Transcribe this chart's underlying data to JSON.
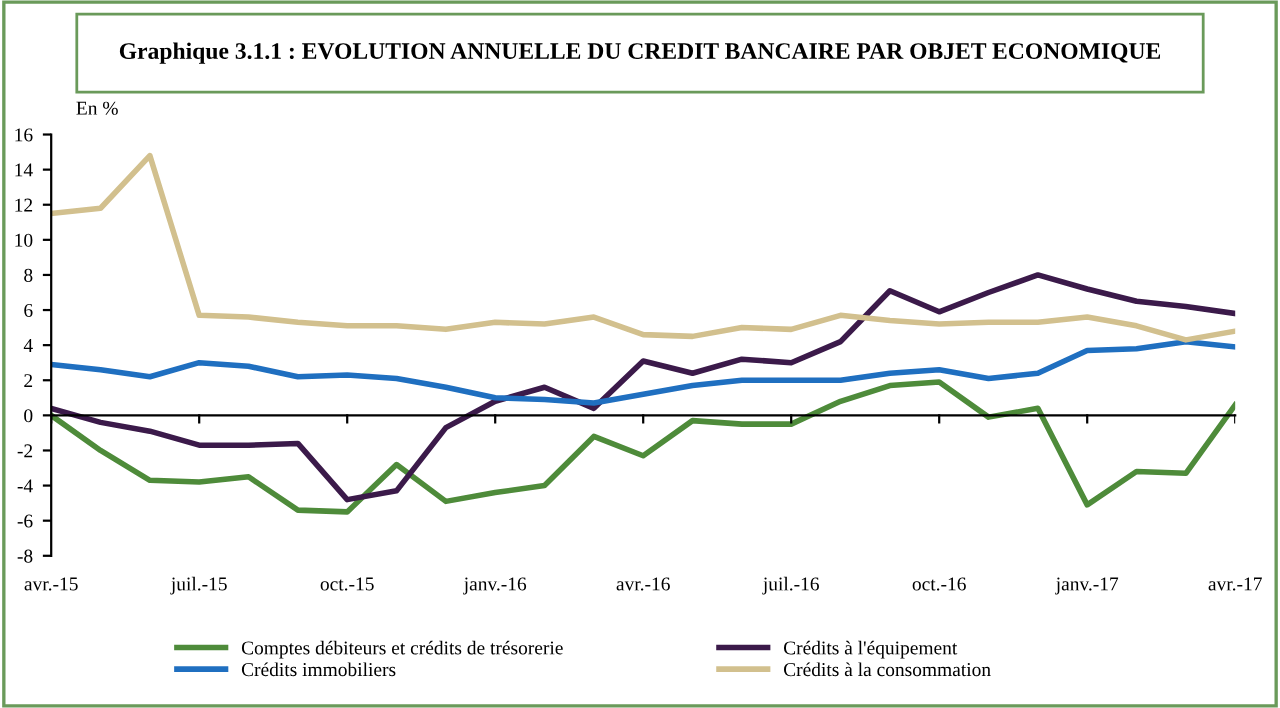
{
  "chart_data": {
    "type": "line",
    "title": "Graphique 3.1.1 : EVOLUTION ANNUELLE DU CREDIT BANCAIRE PAR OBJET ECONOMIQUE",
    "ylabel": "En %",
    "categories": [
      "avr.-15",
      null,
      null,
      "juil.-15",
      null,
      null,
      "oct.-15",
      null,
      null,
      "janv.-16",
      null,
      null,
      "avr.-16",
      null,
      null,
      "juil.-16",
      null,
      null,
      "oct.-16",
      null,
      null,
      "janv.-17",
      null,
      null,
      "avr.-17"
    ],
    "series": [
      {
        "name": "Comptes débiteurs et crédits de trésorerie",
        "color": "#4e8b3a",
        "values": [
          0.0,
          -2.0,
          -3.7,
          -3.8,
          -3.5,
          -5.4,
          -5.5,
          -2.8,
          -4.9,
          -4.4,
          -4.0,
          -1.2,
          -2.3,
          -0.3,
          -0.5,
          -0.5,
          0.8,
          1.7,
          1.9,
          -0.1,
          0.4,
          -5.1,
          -3.2,
          -3.3,
          0.6
        ]
      },
      {
        "name": "Crédits à l'équipement",
        "color": "#3b1a4a",
        "values": [
          0.4,
          -0.4,
          -0.9,
          -1.7,
          -1.7,
          -1.6,
          -4.8,
          -4.3,
          -0.7,
          0.8,
          1.6,
          0.4,
          3.1,
          2.4,
          3.2,
          3.0,
          4.2,
          7.1,
          5.9,
          7.0,
          8.0,
          7.2,
          6.5,
          6.2,
          5.8
        ]
      },
      {
        "name": "Crédits immobiliers",
        "color": "#1f6fc0",
        "values": [
          2.9,
          2.6,
          2.2,
          3.0,
          2.8,
          2.2,
          2.3,
          2.1,
          1.6,
          1.0,
          0.9,
          0.7,
          1.2,
          1.7,
          2.0,
          2.0,
          2.0,
          2.4,
          2.6,
          2.1,
          2.4,
          3.7,
          3.8,
          4.2,
          3.9
        ]
      },
      {
        "name": "Crédits à la consommation",
        "color": "#d2c08e",
        "values": [
          11.5,
          11.8,
          14.8,
          5.7,
          5.6,
          5.3,
          5.1,
          5.1,
          4.9,
          5.3,
          5.2,
          5.6,
          4.6,
          4.5,
          5.0,
          4.9,
          5.7,
          5.4,
          5.2,
          5.3,
          5.3,
          5.6,
          5.1,
          4.3,
          4.8
        ]
      }
    ],
    "ylim": [
      -8,
      16
    ],
    "yticks": [
      -8,
      -6,
      -4,
      -2,
      0,
      2,
      4,
      6,
      8,
      10,
      12,
      14,
      16
    ],
    "legend": "bottom",
    "marker": "none",
    "line_style": "solid"
  }
}
